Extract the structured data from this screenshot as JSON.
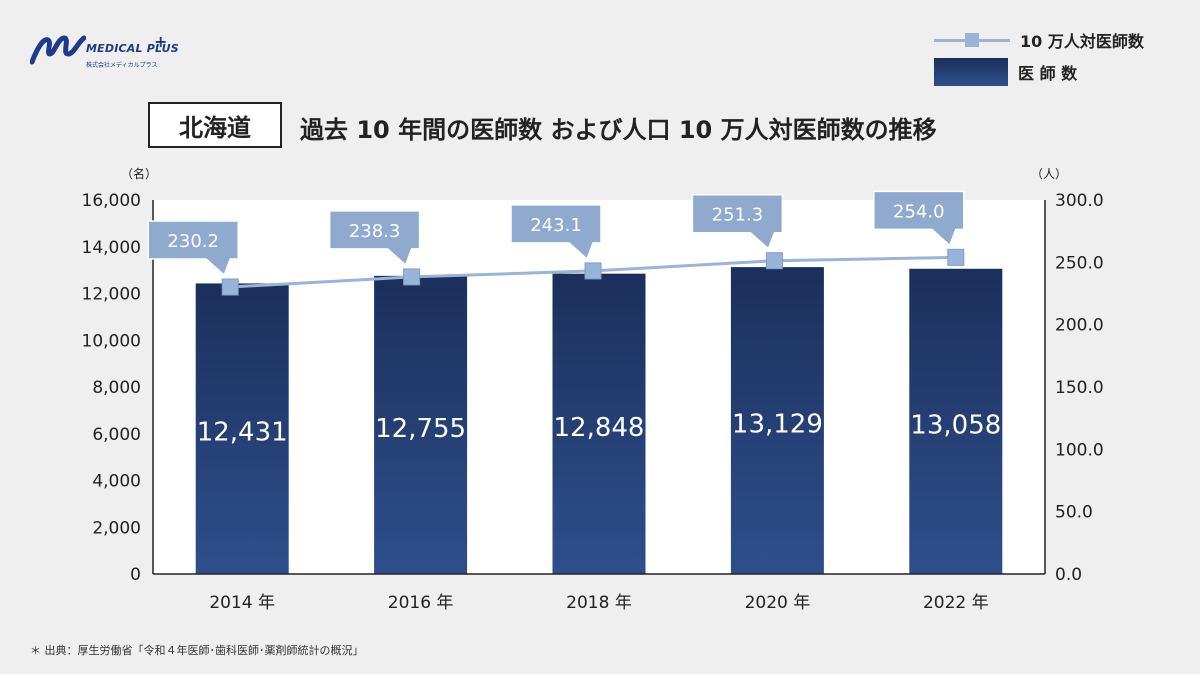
{
  "logo": {
    "brand": "MEDICAL PLUS",
    "plus": "+",
    "sub": "株式会社メディカルプラス"
  },
  "legend": {
    "line": "10 万人対医師数",
    "bar": "医 師 数"
  },
  "title": {
    "region": "北海道",
    "text": "過去 10 年間の医師数 および人口 10 万人対医師数の推移"
  },
  "footnote": "＊ 出典：厚生労働省「令和４年医師･歯科医師･薬剤師統計の概況」",
  "colors": {
    "bar_top": "#1b2f5c",
    "bar_bottom": "#2e4f8c",
    "line": "#9ab3d8",
    "callout": "#8fa9cf"
  },
  "chart_data": {
    "type": "bar",
    "categories": [
      "2014 年",
      "2016 年",
      "2018 年",
      "2020 年",
      "2022 年"
    ],
    "series": [
      {
        "name": "医 師 数",
        "type": "bar",
        "axis": "left",
        "values": [
          12431,
          12755,
          12848,
          13129,
          13058
        ],
        "labels": [
          "12,431",
          "12,755",
          "12,848",
          "13,129",
          "13,058"
        ]
      },
      {
        "name": "10 万人対医師数",
        "type": "line",
        "axis": "right",
        "values": [
          230.2,
          238.3,
          243.1,
          251.3,
          254.0
        ],
        "labels": [
          "230.2",
          "238.3",
          "243.1",
          "251.3",
          "254.0"
        ]
      }
    ],
    "y_left": {
      "unit": "（名）",
      "ylim": [
        0,
        16000
      ],
      "ticks": [
        "0",
        "2,000",
        "4,000",
        "6,000",
        "8,000",
        "10,000",
        "12,000",
        "14,000",
        "16,000"
      ]
    },
    "y_right": {
      "unit": "（人）",
      "ylim": [
        0,
        300
      ],
      "ticks": [
        "0.0",
        "50.0",
        "100.0",
        "150.0",
        "200.0",
        "250.0",
        "300.0"
      ]
    },
    "grid": false,
    "legend": "top-right"
  }
}
